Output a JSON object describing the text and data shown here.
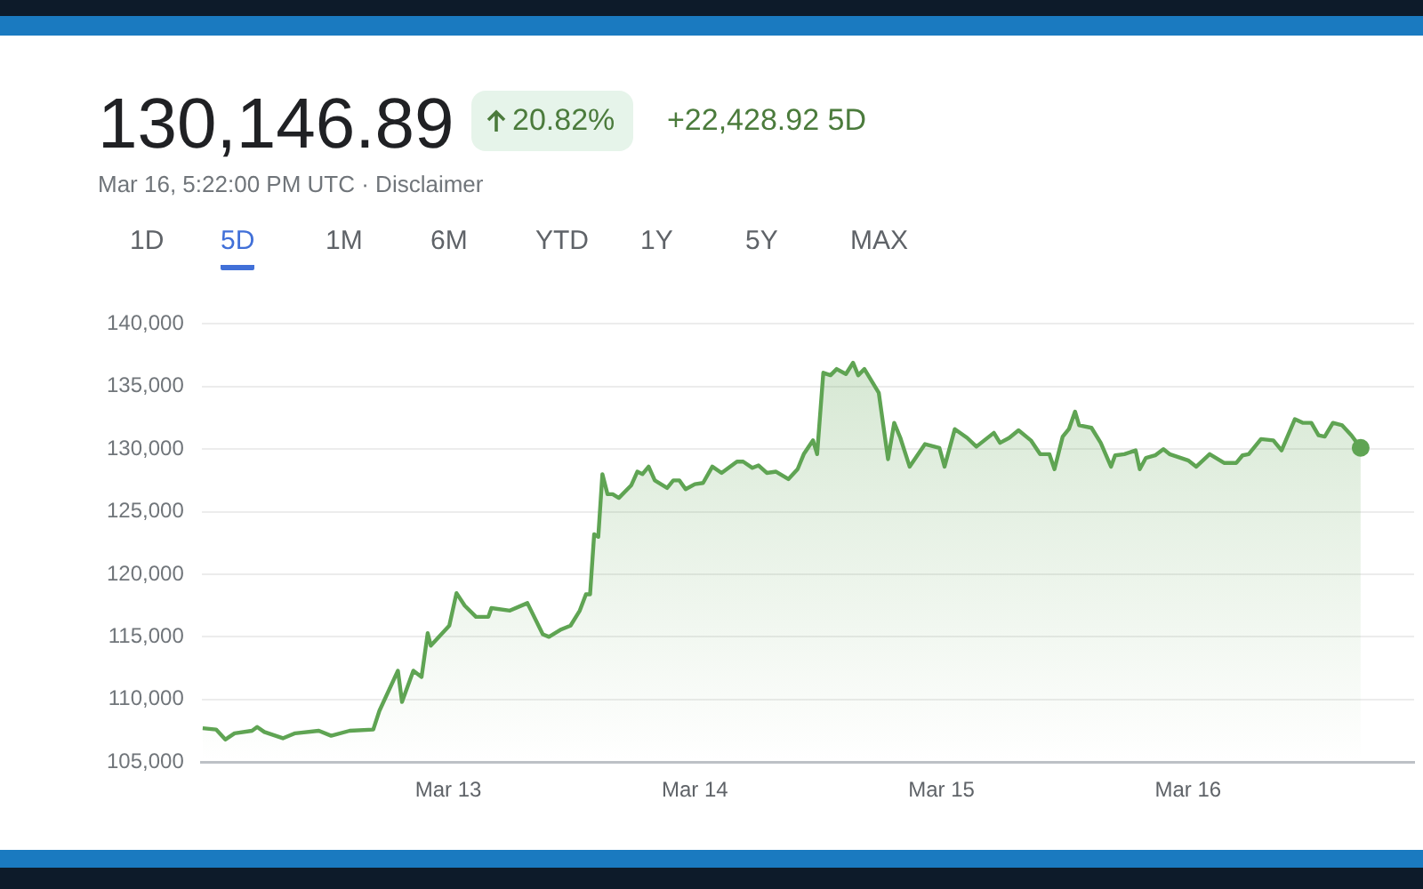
{
  "chart_data": {
    "type": "area",
    "title": "130,146.89",
    "subtitle": "Mar 16, 5:22:00 PM UTC · Disclaimer",
    "annotations": [
      "20.82%",
      "+22,428.92 5D",
      "1D",
      "5D",
      "1M",
      "6M",
      "YTD",
      "1Y",
      "5Y",
      "MAX"
    ],
    "x": [
      "--03-12T00:06",
      "--03-12T01:24",
      "--03-12T02:18",
      "--03-12T03:12",
      "--03-12T04:54",
      "--03-12T05:24",
      "--03-12T06:06",
      "--03-12T07:54",
      "--03-12T09:06",
      "--03-12T11:24",
      "--03-12T12:36",
      "--03-12T14:24",
      "--03-12T16:42",
      "--03-12T17:18",
      "--03-12T19:06",
      "--03-12T19:30",
      "--03-12T20:36",
      "--03-12T21:24",
      "--03-12T22:00",
      "--03-12T22:18",
      "--03-13T00:06",
      "--03-13T00:48",
      "--03-13T01:36",
      "--03-13T02:42",
      "--03-13T03:54",
      "--03-13T04:12",
      "--03-13T06:00",
      "--03-13T07:42",
      "--03-13T09:12",
      "--03-13T09:48",
      "--03-13T11:00",
      "--03-13T11:54",
      "--03-13T12:48",
      "--03-13T13:24",
      "--03-13T13:48",
      "--03-13T14:12",
      "--03-13T14:36",
      "--03-13T15:00",
      "--03-13T15:30",
      "--03-13T16:00",
      "--03-13T16:36",
      "--03-13T17:48",
      "--03-13T18:24",
      "--03-13T18:54",
      "--03-13T19:30",
      "--03-13T20:06",
      "--03-13T21:18",
      "--03-13T21:54",
      "--03-13T22:30",
      "--03-13T23:06",
      "--03-14T00:00",
      "--03-14T00:48",
      "--03-14T01:42",
      "--03-14T02:36",
      "--03-14T04:06",
      "--03-14T04:42",
      "--03-14T05:36",
      "--03-14T06:12",
      "--03-14T07:00",
      "--03-14T07:54",
      "--03-14T09:06",
      "--03-14T10:00",
      "--03-14T10:36",
      "--03-14T11:30",
      "--03-14T11:54",
      "--03-14T12:30",
      "--03-14T13:12",
      "--03-14T13:48",
      "--03-14T14:42",
      "--03-14T15:24",
      "--03-14T15:54",
      "--03-14T16:30",
      "--03-14T17:54",
      "--03-14T18:48",
      "--03-14T19:24",
      "--03-14T20:00",
      "--03-14T20:54",
      "--03-14T22:24",
      "--03-14T23:48",
      "--03-15T00:18",
      "--03-15T01:18",
      "--03-15T02:30",
      "--03-15T03:24",
      "--03-15T05:06",
      "--03-15T05:42",
      "--03-15T06:36",
      "--03-15T07:30",
      "--03-15T08:42",
      "--03-15T09:36",
      "--03-15T10:30",
      "--03-15T11:00",
      "--03-15T11:48",
      "--03-15T12:24",
      "--03-15T13:00",
      "--03-15T13:24",
      "--03-15T14:36",
      "--03-15T15:30",
      "--03-15T16:30",
      "--03-15T16:54",
      "--03-15T17:48",
      "--03-15T18:54",
      "--03-15T19:18",
      "--03-15T19:54",
      "--03-15T20:48",
      "--03-15T21:36",
      "--03-15T22:12",
      "--03-16T00:00",
      "--03-16T00:48",
      "--03-16T02:06",
      "--03-16T03:30",
      "--03-16T04:42",
      "--03-16T05:18",
      "--03-16T05:54",
      "--03-16T07:06",
      "--03-16T08:18",
      "--03-16T09:06",
      "--03-16T10:24",
      "--03-16T11:12",
      "--03-16T12:00",
      "--03-16T12:42",
      "--03-16T13:18",
      "--03-16T14:06",
      "--03-16T15:00",
      "--03-16T15:54",
      "--03-16T16:48"
    ],
    "series": [
      {
        "color": "#5fa453",
        "values": [
          107700,
          107600,
          106800,
          107300,
          107500,
          107800,
          107400,
          106900,
          107300,
          107500,
          107100,
          107500,
          107600,
          109100,
          112300,
          109800,
          112300,
          111800,
          115300,
          114300,
          115900,
          118500,
          117500,
          116600,
          116600,
          117300,
          117100,
          117700,
          115200,
          115000,
          115600,
          115900,
          117100,
          118400,
          118400,
          123200,
          123000,
          128000,
          126400,
          126400,
          126100,
          127100,
          128200,
          128000,
          128600,
          127500,
          126900,
          127500,
          127500,
          126800,
          127200,
          127300,
          128600,
          128100,
          129000,
          129000,
          128500,
          128700,
          128100,
          128200,
          127600,
          128400,
          129600,
          130700,
          129600,
          136100,
          135900,
          136400,
          136000,
          136900,
          135900,
          136400,
          134500,
          129200,
          132100,
          130900,
          128600,
          130400,
          130100,
          128600,
          131600,
          130900,
          130200,
          131300,
          130500,
          130900,
          131500,
          130700,
          129600,
          129600,
          128400,
          131000,
          131600,
          133000,
          131900,
          131700,
          130500,
          128600,
          129500,
          129600,
          129900,
          128400,
          129300,
          129500,
          130000,
          129600,
          129100,
          128600,
          129600,
          128900,
          128900,
          129500,
          129600,
          130800,
          130700,
          129900,
          132400,
          132100,
          132100,
          131100,
          131000,
          132100,
          131900,
          131100,
          130100
        ]
      }
    ],
    "xlim": [
      "--03-12T00:00",
      "--03-16T22:00"
    ],
    "xticks": [
      {
        "value": "--03-13",
        "label": "Mar 13"
      },
      {
        "value": "--03-14",
        "label": "Mar 14"
      },
      {
        "value": "--03-15",
        "label": "Mar 15"
      },
      {
        "value": "--03-16",
        "label": "Mar 16"
      }
    ],
    "ylim": [
      105000,
      140000
    ],
    "yticks": [
      {
        "value": 105000,
        "label": "105,000"
      },
      {
        "value": 110000,
        "label": "110,000"
      },
      {
        "value": 115000,
        "label": "115,000"
      },
      {
        "value": 120000,
        "label": "120,000"
      },
      {
        "value": 125000,
        "label": "125,000"
      },
      {
        "value": 130000,
        "label": "130,000"
      },
      {
        "value": 135000,
        "label": "135,000"
      },
      {
        "value": 140000,
        "label": "140,000"
      }
    ],
    "grid": "y",
    "legend": false
  }
}
